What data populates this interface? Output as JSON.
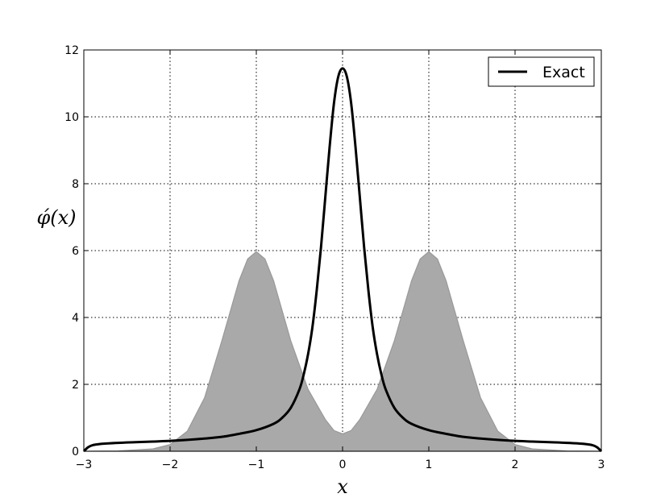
{
  "chart_data": {
    "type": "line",
    "xlabel": "x",
    "ylabel": "φ́(x)",
    "xlim": [
      -3,
      3
    ],
    "ylim": [
      0,
      12
    ],
    "xticks": [
      -3,
      -2,
      -1,
      0,
      1,
      2,
      3
    ],
    "xtick_labels": [
      "−3",
      "−2",
      "−1",
      "0",
      "1",
      "2",
      "3"
    ],
    "yticks": [
      0,
      2,
      4,
      6,
      8,
      10,
      12
    ],
    "ytick_labels": [
      "0",
      "2",
      "4",
      "6",
      "8",
      "10",
      "12"
    ],
    "grid": true,
    "legend_position": "top-right",
    "series": [
      {
        "name": "Exact",
        "color": "#000000",
        "x": [
          -3.0,
          -2.95,
          -2.9,
          -2.8,
          -2.6,
          -2.4,
          -2.2,
          -2.0,
          -1.8,
          -1.6,
          -1.4,
          -1.2,
          -1.0,
          -0.8,
          -0.7,
          -0.6,
          -0.5,
          -0.45,
          -0.4,
          -0.35,
          -0.3,
          -0.25,
          -0.2,
          -0.15,
          -0.1,
          -0.05,
          0.0,
          0.05,
          0.1,
          0.15,
          0.2,
          0.25,
          0.3,
          0.35,
          0.4,
          0.45,
          0.5,
          0.6,
          0.7,
          0.8,
          1.0,
          1.2,
          1.4,
          1.6,
          1.8,
          2.0,
          2.2,
          2.4,
          2.6,
          2.8,
          2.9,
          2.95,
          3.0
        ],
        "y": [
          0.0,
          0.12,
          0.18,
          0.22,
          0.25,
          0.27,
          0.29,
          0.31,
          0.34,
          0.38,
          0.43,
          0.52,
          0.63,
          0.82,
          1.0,
          1.3,
          1.85,
          2.3,
          2.9,
          3.7,
          4.8,
          6.1,
          7.6,
          9.1,
          10.4,
          11.2,
          11.45,
          11.2,
          10.4,
          9.1,
          7.6,
          6.1,
          4.8,
          3.7,
          2.9,
          2.3,
          1.85,
          1.3,
          1.0,
          0.82,
          0.63,
          0.52,
          0.43,
          0.38,
          0.34,
          0.31,
          0.29,
          0.27,
          0.25,
          0.22,
          0.18,
          0.12,
          0.0
        ]
      }
    ],
    "fill": {
      "color": "#a9a9a9",
      "edge_color": "#999999",
      "x": [
        -3.0,
        -2.6,
        -2.2,
        -2.0,
        -1.8,
        -1.6,
        -1.4,
        -1.2,
        -1.1,
        -1.0,
        -0.9,
        -0.8,
        -0.6,
        -0.4,
        -0.2,
        -0.1,
        0.0,
        0.1,
        0.2,
        0.4,
        0.6,
        0.8,
        0.9,
        1.0,
        1.1,
        1.2,
        1.4,
        1.6,
        1.8,
        2.0,
        2.2,
        2.6,
        3.0
      ],
      "y": [
        0.0,
        0.01,
        0.07,
        0.2,
        0.6,
        1.6,
        3.3,
        5.1,
        5.75,
        5.97,
        5.75,
        5.1,
        3.3,
        1.85,
        0.95,
        0.62,
        0.52,
        0.62,
        0.95,
        1.85,
        3.3,
        5.1,
        5.75,
        5.97,
        5.75,
        5.1,
        3.3,
        1.6,
        0.6,
        0.2,
        0.07,
        0.01,
        0.0
      ]
    }
  }
}
